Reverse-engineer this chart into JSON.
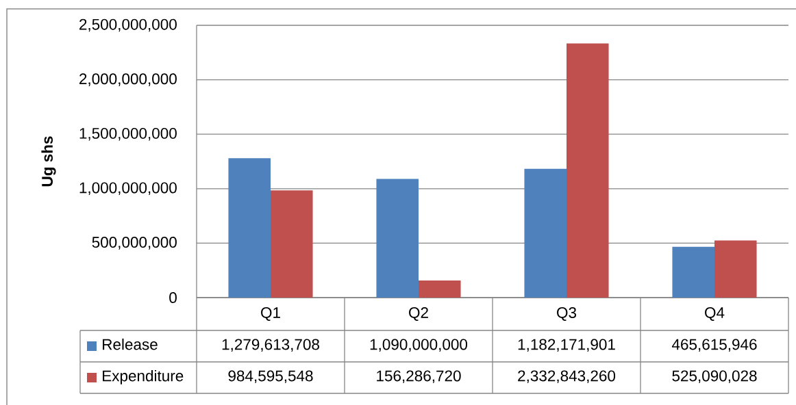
{
  "chart_data": {
    "type": "bar",
    "ylabel": "Ug shs",
    "categories": [
      "Q1",
      "Q2",
      "Q3",
      "Q4"
    ],
    "series": [
      {
        "name": "Release",
        "color": "#4f81bd",
        "values": [
          1279613708,
          1090000000,
          1182171901,
          465615946
        ],
        "value_labels": [
          "1,279,613,708",
          "1,090,000,000",
          "1,182,171,901",
          "465,615,946"
        ]
      },
      {
        "name": "Expenditure",
        "color": "#c0504d",
        "values": [
          984595548,
          156286720,
          2332843260,
          525090028
        ],
        "value_labels": [
          "984,595,548",
          "156,286,720",
          "2,332,843,260",
          "525,090,028"
        ]
      }
    ],
    "ylim": [
      0,
      2500000000
    ],
    "yticks": [
      0,
      {
        "value": 500000000,
        "label": "500,000,000"
      },
      {
        "value": 1000000000,
        "label": "1,000,000,000"
      },
      {
        "value": 1500000000,
        "label": "1,500,000,000"
      },
      {
        "value": 2000000000,
        "label": "2,000,000,000"
      },
      {
        "value": 2500000000,
        "label": "2,500,000,000"
      }
    ],
    "grid": "y",
    "legend": "bottom"
  }
}
